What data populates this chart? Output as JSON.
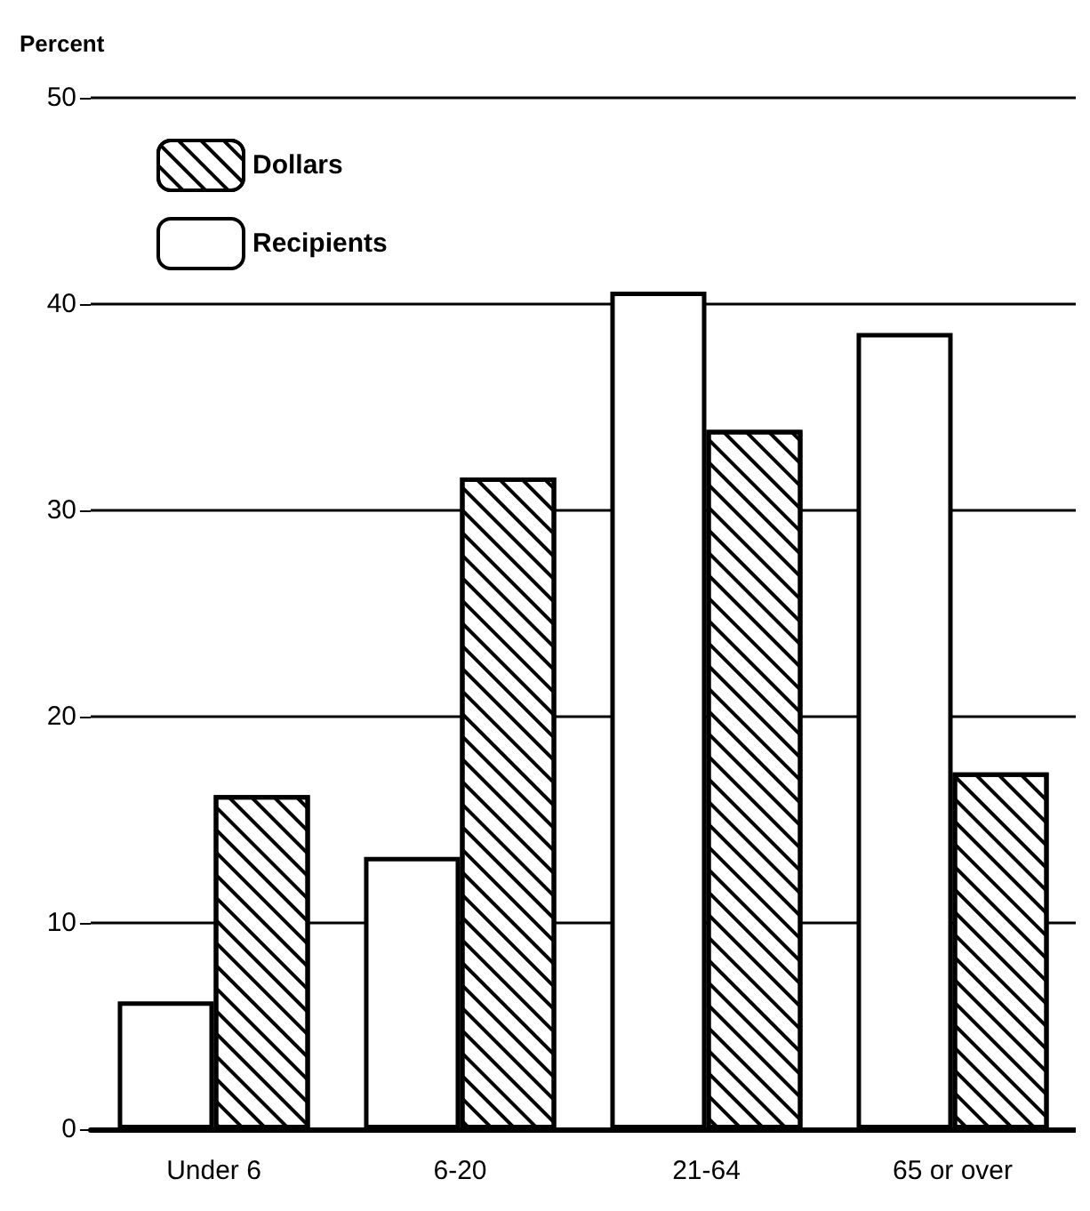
{
  "chart_data": {
    "type": "bar",
    "ylabel": "Percent",
    "categories": [
      "Under 6",
      "6-20",
      "21-64",
      "65 or over"
    ],
    "series": [
      {
        "name": "Recipients",
        "color": "#ffffff",
        "values": [
          6.2,
          13.2,
          40.6,
          38.6
        ]
      },
      {
        "name": "Dollars",
        "color": "#ffffff",
        "values": [
          16.2,
          31.6,
          33.9,
          17.3
        ]
      }
    ],
    "ylim": [
      0,
      50
    ],
    "yticks": [
      0,
      10,
      20,
      30,
      40,
      50
    ],
    "grid": "y",
    "legend": "top left"
  }
}
